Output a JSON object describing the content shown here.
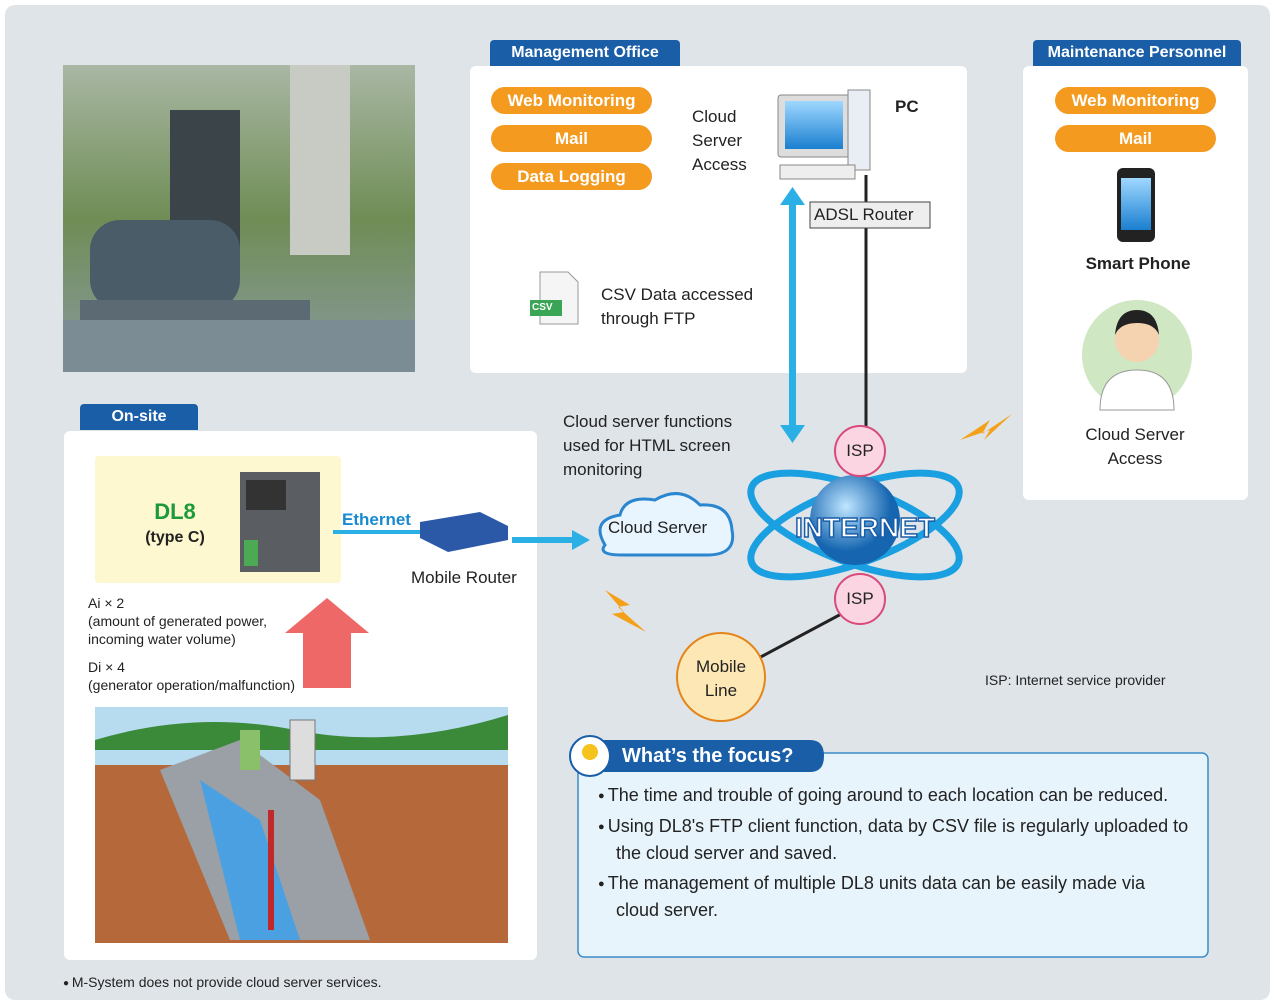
{
  "management_office": {
    "title": "Management Office",
    "functions": [
      "Web Monitoring",
      "Mail",
      "Data Logging"
    ],
    "access": "Cloud Server Access",
    "pc": "PC",
    "router": "ADSL Router",
    "csv_icon": "CSV",
    "csv_note": "CSV Data accessed through FTP"
  },
  "maintenance": {
    "title": "Maintenance Personnel",
    "functions": [
      "Web Monitoring",
      "Mail"
    ],
    "device": "Smart Phone",
    "access": "Cloud Server Access"
  },
  "onsite": {
    "title": "On-site",
    "device": "DL8",
    "device_type": "(type C)",
    "ethernet": "Ethernet",
    "router": "Mobile Router",
    "ai": "Ai × 2",
    "ai_note": "(amount of generated power, incoming water volume)",
    "di": "Di × 4",
    "di_note": "(generator operation/malfunction)"
  },
  "network": {
    "cloud_note": "Cloud server functions used for HTML screen monitoring",
    "cloud": "Cloud Server",
    "internet": "INTERNET",
    "isp": [
      "ISP",
      "ISP"
    ],
    "mobile_line": "Mobile Line",
    "isp_note": "ISP: Internet service provider"
  },
  "focus": {
    "title": "What’s the focus?",
    "points": [
      "The time and trouble of going around to each location can be reduced.",
      "Using DL8's FTP client function, data by CSV file is regularly uploaded to the cloud server and saved.",
      "The management of multiple DL8 units data can be easily made via cloud server."
    ]
  },
  "footnote": "M-System does not provide cloud server services."
}
